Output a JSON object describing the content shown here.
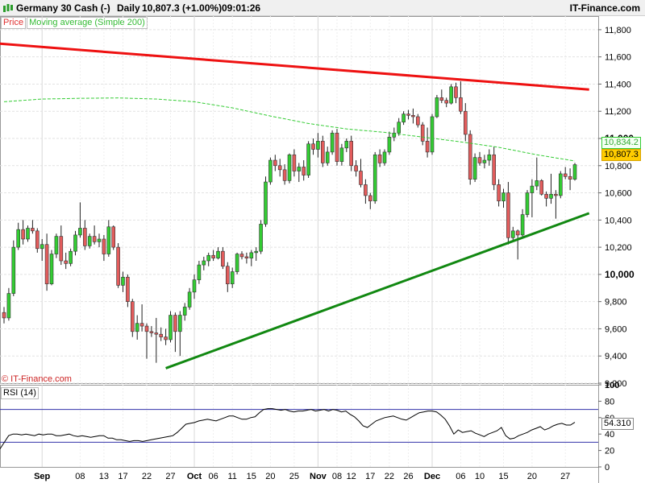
{
  "header": {
    "instrument": "Germany 30 Cash (-)",
    "period": "Daily",
    "last": "10,807.3 (+1.00%)",
    "time": "09:01:26",
    "brand": "IT-Finance.com"
  },
  "legend": {
    "price": "Price",
    "ma": "Moving average (Simple 200)"
  },
  "watermark": "© IT-Finance.com",
  "rsi_label": "RSI (14)",
  "tags": {
    "ma_value": "10,834.2",
    "price_value": "10,807.3",
    "rsi_value": "54.310"
  },
  "colors": {
    "up": "#33cc33",
    "down": "#e25c5c",
    "ma": "#33cc33",
    "resistance": "#ee1111",
    "support": "#118811",
    "rsi_band": "#3333aa"
  },
  "chart_data": [
    {
      "type": "candlestick",
      "title": "Germany 30 Cash (-) Daily",
      "ylim": [
        9200,
        11900
      ],
      "y_ticks": [
        9200,
        9400,
        9600,
        9800,
        10000,
        10200,
        10400,
        10600,
        10800,
        11000,
        11200,
        11400,
        11600,
        11800
      ],
      "y_tick_labels": [
        "9,200",
        "9,400",
        "9,600",
        "9,800",
        "10,000",
        "10,200",
        "10,400",
        "10,600",
        "10,800",
        "11,000",
        "11,200",
        "11,400",
        "11,600",
        "11,800"
      ],
      "y_major": [
        10000,
        11000
      ],
      "x_tick_labels": [
        "Sep",
        "08",
        "13",
        "17",
        "22",
        "27",
        "Oct",
        "06",
        "11",
        "15",
        "20",
        "25",
        "Nov",
        "08",
        "12",
        "17",
        "22",
        "26",
        "Dec",
        "06",
        "10",
        "15",
        "20",
        "27"
      ],
      "x_month_labels": [
        "Sep",
        "Oct",
        "Nov",
        "Dec"
      ],
      "candles_ohlc": [
        [
          9720,
          9760,
          9640,
          9680
        ],
        [
          9680,
          9900,
          9660,
          9860
        ],
        [
          9860,
          10250,
          9840,
          10200
        ],
        [
          10200,
          10380,
          10180,
          10330
        ],
        [
          10330,
          10400,
          10220,
          10260
        ],
        [
          10260,
          10360,
          10240,
          10340
        ],
        [
          10340,
          10400,
          10300,
          10320
        ],
        [
          10320,
          10340,
          10160,
          10190
        ],
        [
          10190,
          10260,
          10100,
          10220
        ],
        [
          10220,
          10300,
          9880,
          9930
        ],
        [
          9930,
          10180,
          9920,
          10150
        ],
        [
          10150,
          10300,
          10120,
          10280
        ],
        [
          10280,
          10360,
          10070,
          10100
        ],
        [
          10100,
          10160,
          10040,
          10080
        ],
        [
          10080,
          10190,
          10060,
          10170
        ],
        [
          10170,
          10320,
          10140,
          10290
        ],
        [
          10290,
          10530,
          10270,
          10340
        ],
        [
          10340,
          10400,
          10180,
          10210
        ],
        [
          10210,
          10300,
          10190,
          10280
        ],
        [
          10280,
          10360,
          10220,
          10240
        ],
        [
          10240,
          10300,
          10200,
          10260
        ],
        [
          10260,
          10290,
          10100,
          10150
        ],
        [
          10150,
          10400,
          10130,
          10350
        ],
        [
          10350,
          10360,
          10180,
          10200
        ],
        [
          10200,
          10230,
          9900,
          9920
        ],
        [
          9920,
          10020,
          9870,
          9980
        ],
        [
          9980,
          10000,
          9760,
          9800
        ],
        [
          9800,
          9820,
          9540,
          9580
        ],
        [
          9580,
          9700,
          9520,
          9640
        ],
        [
          9640,
          9780,
          9580,
          9620
        ],
        [
          9620,
          9640,
          9380,
          9580
        ],
        [
          9580,
          9620,
          9540,
          9570
        ],
        [
          9570,
          9680,
          9350,
          9560
        ],
        [
          9560,
          9610,
          9510,
          9540
        ],
        [
          9540,
          9600,
          9480,
          9520
        ],
        [
          9520,
          9730,
          9500,
          9700
        ],
        [
          9700,
          9720,
          9430,
          9580
        ],
        [
          9580,
          9730,
          9400,
          9700
        ],
        [
          9700,
          9790,
          9660,
          9760
        ],
        [
          9760,
          9900,
          9740,
          9870
        ],
        [
          9870,
          10000,
          9820,
          9960
        ],
        [
          9960,
          10100,
          9930,
          10070
        ],
        [
          10070,
          10130,
          10030,
          10100
        ],
        [
          10100,
          10160,
          10060,
          10140
        ],
        [
          10140,
          10180,
          10100,
          10120
        ],
        [
          10120,
          10200,
          10110,
          10170
        ],
        [
          10170,
          10200,
          10040,
          10060
        ],
        [
          10060,
          10090,
          9870,
          9930
        ],
        [
          9930,
          10050,
          9900,
          10020
        ],
        [
          10020,
          10160,
          10000,
          10150
        ],
        [
          10150,
          10170,
          10110,
          10130
        ],
        [
          10130,
          10160,
          10080,
          10120
        ],
        [
          10120,
          10180,
          10060,
          10160
        ],
        [
          10160,
          10200,
          10100,
          10170
        ],
        [
          10170,
          10400,
          10150,
          10370
        ],
        [
          10370,
          10720,
          10350,
          10680
        ],
        [
          10680,
          10860,
          10660,
          10840
        ],
        [
          10840,
          10880,
          10760,
          10800
        ],
        [
          10800,
          10850,
          10720,
          10770
        ],
        [
          10770,
          10810,
          10660,
          10690
        ],
        [
          10690,
          10890,
          10670,
          10880
        ],
        [
          10880,
          10920,
          10720,
          10760
        ],
        [
          10760,
          10820,
          10680,
          10790
        ],
        [
          10790,
          10840,
          10690,
          10730
        ],
        [
          10730,
          10980,
          10710,
          10960
        ],
        [
          10960,
          11000,
          10880,
          10920
        ],
        [
          10920,
          11040,
          10860,
          10980
        ],
        [
          10980,
          11020,
          10790,
          10820
        ],
        [
          10820,
          10940,
          10800,
          10900
        ],
        [
          10900,
          11060,
          10880,
          11040
        ],
        [
          11040,
          11070,
          10800,
          10830
        ],
        [
          10830,
          10960,
          10800,
          10930
        ],
        [
          10930,
          11000,
          10900,
          10980
        ],
        [
          10980,
          11020,
          10760,
          10800
        ],
        [
          10800,
          10840,
          10720,
          10760
        ],
        [
          10760,
          10850,
          10640,
          10660
        ],
        [
          10660,
          10700,
          10520,
          10580
        ],
        [
          10580,
          10600,
          10480,
          10540
        ],
        [
          10540,
          10900,
          10520,
          10880
        ],
        [
          10880,
          10920,
          10790,
          10820
        ],
        [
          10820,
          10920,
          10800,
          10900
        ],
        [
          10900,
          11050,
          10880,
          11010
        ],
        [
          11010,
          11080,
          10980,
          11040
        ],
        [
          11040,
          11150,
          11020,
          11120
        ],
        [
          11120,
          11200,
          11100,
          11180
        ],
        [
          11180,
          11210,
          11140,
          11170
        ],
        [
          11170,
          11220,
          11110,
          11160
        ],
        [
          11160,
          11180,
          11080,
          11100
        ],
        [
          11100,
          11120,
          10950,
          10980
        ],
        [
          10980,
          11080,
          10860,
          10900
        ],
        [
          10900,
          11180,
          10880,
          11160
        ],
        [
          11160,
          11320,
          11150,
          11300
        ],
        [
          11300,
          11360,
          11260,
          11280
        ],
        [
          11280,
          11300,
          11230,
          11260
        ],
        [
          11260,
          11400,
          11250,
          11380
        ],
        [
          11380,
          11410,
          11260,
          11300
        ],
        [
          11300,
          11420,
          11180,
          11200
        ],
        [
          11200,
          11260,
          10980,
          11030
        ],
        [
          11030,
          11060,
          10660,
          10700
        ],
        [
          10700,
          10890,
          10680,
          10860
        ],
        [
          10860,
          10900,
          10800,
          10820
        ],
        [
          10820,
          10880,
          10780,
          10840
        ],
        [
          10840,
          10920,
          10800,
          10880
        ],
        [
          10880,
          10940,
          10620,
          10660
        ],
        [
          10660,
          10700,
          10500,
          10540
        ],
        [
          10540,
          10630,
          10490,
          10600
        ],
        [
          10600,
          10680,
          10220,
          10270
        ],
        [
          10270,
          10350,
          10250,
          10320
        ],
        [
          10320,
          10330,
          10110,
          10290
        ],
        [
          10290,
          10480,
          10270,
          10440
        ],
        [
          10440,
          10620,
          10420,
          10600
        ],
        [
          10600,
          10700,
          10420,
          10650
        ],
        [
          10650,
          10860,
          10620,
          10690
        ],
        [
          10690,
          10700,
          10580,
          10590
        ],
        [
          10590,
          10610,
          10500,
          10560
        ],
        [
          10560,
          10740,
          10520,
          10590
        ],
        [
          10590,
          10620,
          10410,
          10580
        ],
        [
          10580,
          10760,
          10560,
          10740
        ],
        [
          10740,
          10790,
          10700,
          10720
        ],
        [
          10720,
          10780,
          10620,
          10700
        ],
        [
          10700,
          10820,
          10690,
          10807.3
        ]
      ],
      "series": [
        {
          "name": "Price",
          "type": "candlestick"
        },
        {
          "name": "Moving average (Simple 200)",
          "type": "line",
          "y": [
            11270,
            11290,
            11295,
            11298,
            11290,
            11270,
            11225,
            11165,
            11110,
            11070,
            11045,
            11010,
            10975,
            10935,
            10880,
            10834.2
          ]
        }
      ],
      "trendlines": [
        {
          "from_index": -2,
          "from_y": 11700,
          "to_index": 123,
          "to_y": 11360
        },
        {
          "from_index": 34,
          "from_y": 9310,
          "to_index": 123,
          "to_y": 10450
        }
      ],
      "last_value": 10807.3,
      "ma_last_value": 10834.2,
      "grid": true
    },
    {
      "type": "line",
      "title": "RSI (14)",
      "ylim": [
        0,
        100
      ],
      "y_ticks": [
        0,
        20,
        40,
        60,
        80,
        100
      ],
      "y_tick_labels": [
        "0",
        "20",
        "40",
        "60",
        "80",
        "100"
      ],
      "bands": [
        30,
        70
      ],
      "series": [
        {
          "name": "RSI (14)",
          "values": [
            22,
            30,
            38,
            40,
            40,
            39,
            40,
            39,
            38,
            40,
            39,
            40,
            40,
            38,
            38,
            39,
            40,
            38,
            37,
            38,
            37,
            36,
            37,
            38,
            38,
            35,
            35,
            33,
            33,
            32,
            31,
            32,
            32,
            31,
            32,
            33,
            34,
            35,
            36,
            37,
            38,
            42,
            47,
            52,
            53,
            54,
            56,
            57,
            58,
            57,
            56,
            58,
            60,
            62,
            62,
            60,
            58,
            58,
            60,
            61,
            66,
            70,
            71,
            71,
            70,
            69,
            70,
            68,
            67,
            68,
            68,
            69,
            70,
            68,
            69,
            70,
            68,
            70,
            69,
            67,
            68,
            64,
            61,
            56,
            50,
            48,
            52,
            56,
            58,
            60,
            61,
            62,
            60,
            58,
            57,
            60,
            63,
            66,
            67,
            68,
            68,
            67,
            63,
            58,
            50,
            40,
            45,
            42,
            43,
            44,
            41,
            39,
            37,
            40,
            42,
            44,
            48,
            38,
            34,
            35,
            38,
            40,
            42,
            45,
            47,
            49,
            45,
            47,
            50,
            52,
            53,
            51,
            51,
            54.31
          ]
        }
      ],
      "last_value": 54.31,
      "grid": true
    }
  ]
}
